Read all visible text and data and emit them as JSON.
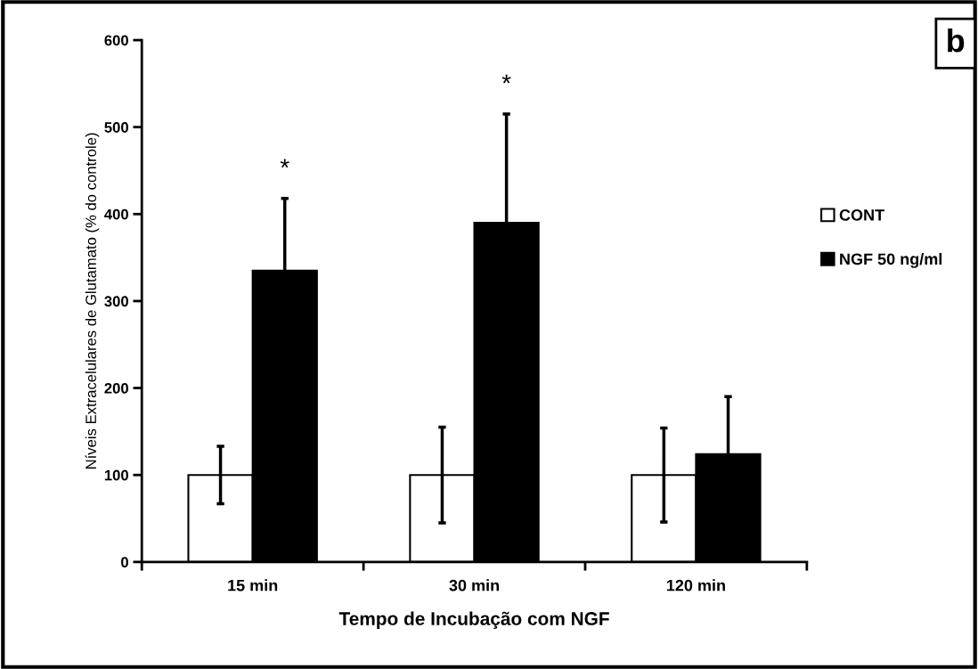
{
  "chart_data": {
    "type": "bar",
    "xlabel": "Tempo de Incubação com NGF",
    "ylabel": "Níveis Extracelulares de Glutamato (% do controle)",
    "categories": [
      "15 min",
      "30 min",
      "120 min"
    ],
    "series": [
      {
        "name": "CONT",
        "color": "#ffffff",
        "values": [
          100,
          100,
          100
        ],
        "errors": [
          33,
          55,
          54
        ]
      },
      {
        "name": "NGF 50 ng/ml",
        "color": "#000000",
        "values": [
          335,
          390,
          124
        ],
        "errors": [
          83,
          125,
          66
        ]
      }
    ],
    "ylim": [
      0,
      600
    ],
    "yticks": [
      0,
      100,
      200,
      300,
      400,
      500,
      600
    ],
    "grid": false,
    "legend": "right",
    "annotations": [
      "*",
      "*",
      "b"
    ]
  }
}
